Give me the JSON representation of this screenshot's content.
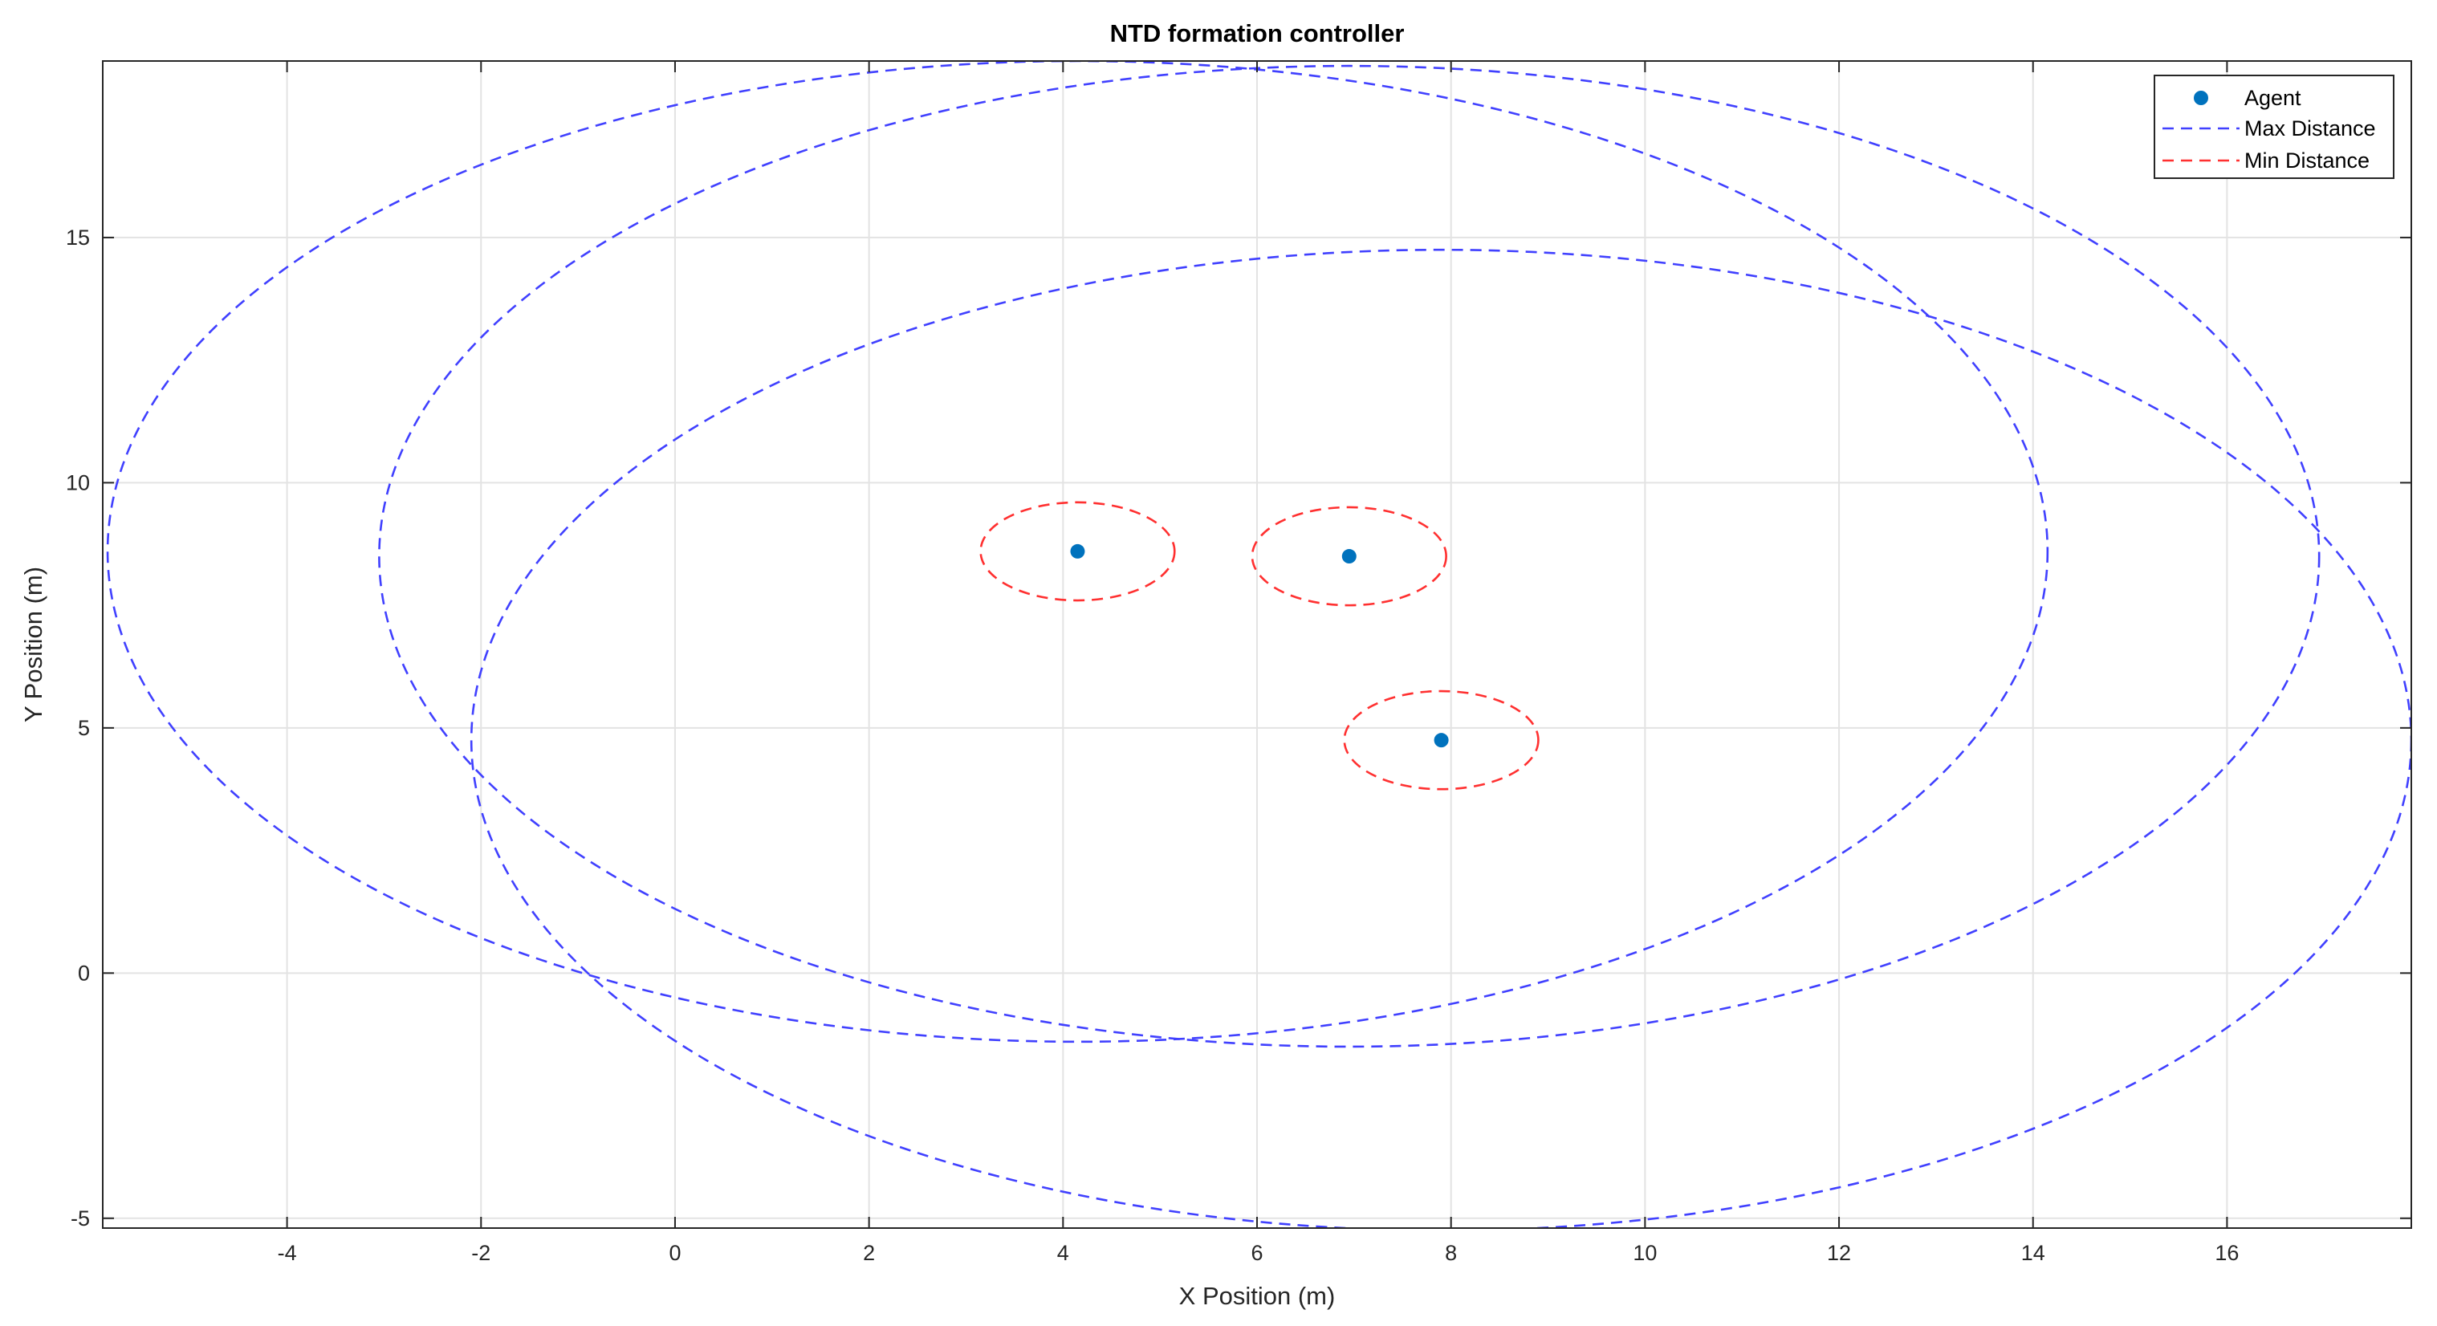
{
  "chart_data": {
    "type": "scatter",
    "title": "NTD formation controller",
    "xlabel": "X Position (m)",
    "ylabel": "Y Position (m)",
    "xlim": [
      -5.9,
      17.9
    ],
    "ylim": [
      -5.2,
      18.6
    ],
    "xticks": [
      -4,
      -2,
      0,
      2,
      4,
      6,
      8,
      10,
      12,
      14,
      16
    ],
    "xtick_labels": [
      "-4",
      "-2",
      "0",
      "2",
      "4",
      "6",
      "8",
      "10",
      "12",
      "14",
      "16"
    ],
    "yticks": [
      -5,
      0,
      5,
      10,
      15
    ],
    "ytick_labels": [
      "-5",
      "0",
      "5",
      "10",
      "15"
    ],
    "grid": true,
    "legend_position": "top-right",
    "legend": [
      "Agent",
      "Max Distance",
      "Min Distance"
    ],
    "agents": [
      {
        "x": 4.15,
        "y": 8.6
      },
      {
        "x": 6.95,
        "y": 8.5
      },
      {
        "x": 7.9,
        "y": 4.75
      }
    ],
    "min_distance_radius": 1.0,
    "max_distance_radius": 10.0,
    "colors": {
      "agent": "#0072BD",
      "max_distance": "#4040ff",
      "min_distance": "#ff3030",
      "grid": "#e3e3e3",
      "axis": "#262626"
    }
  }
}
